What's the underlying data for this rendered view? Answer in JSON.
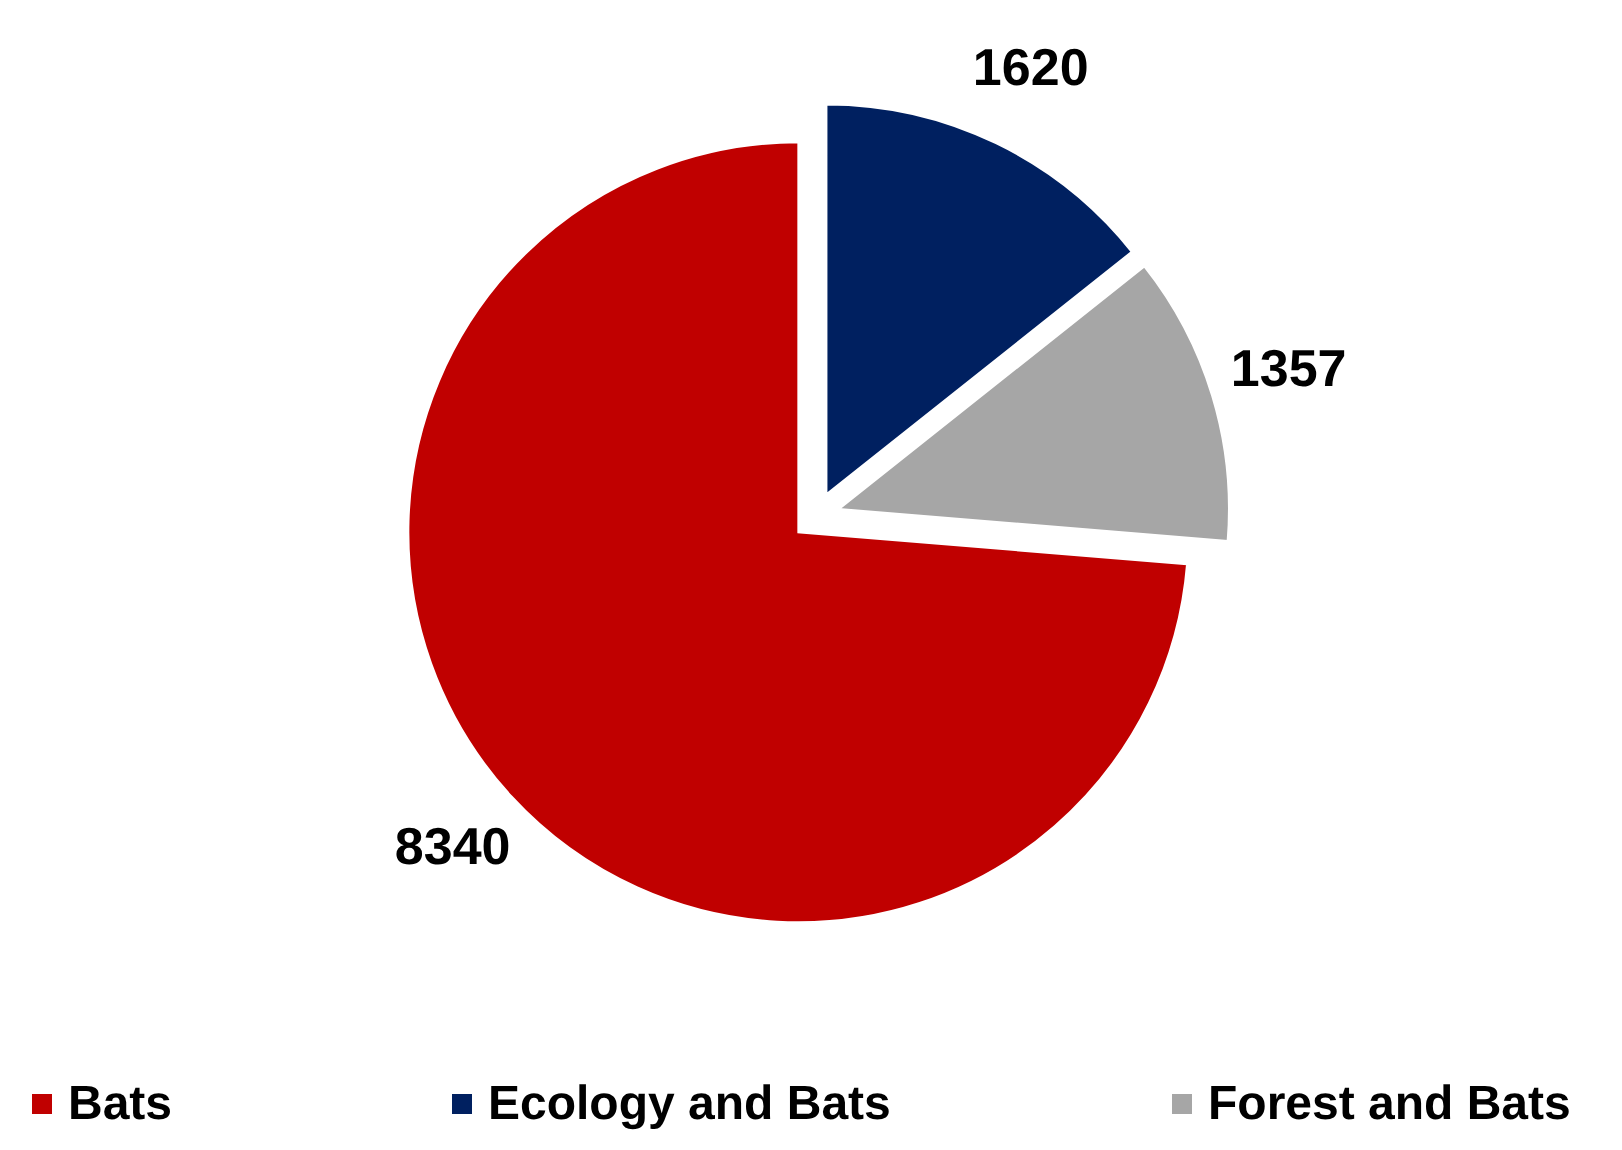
{
  "chart_data": {
    "type": "pie",
    "categories": [
      "Bats",
      "Ecology and Bats",
      "Forest and Bats"
    ],
    "values": [
      8340,
      1620,
      1357
    ],
    "colors": [
      "#c00000",
      "#002060",
      "#a6a6a6"
    ],
    "data_labels": true,
    "legend": "bottom"
  }
}
